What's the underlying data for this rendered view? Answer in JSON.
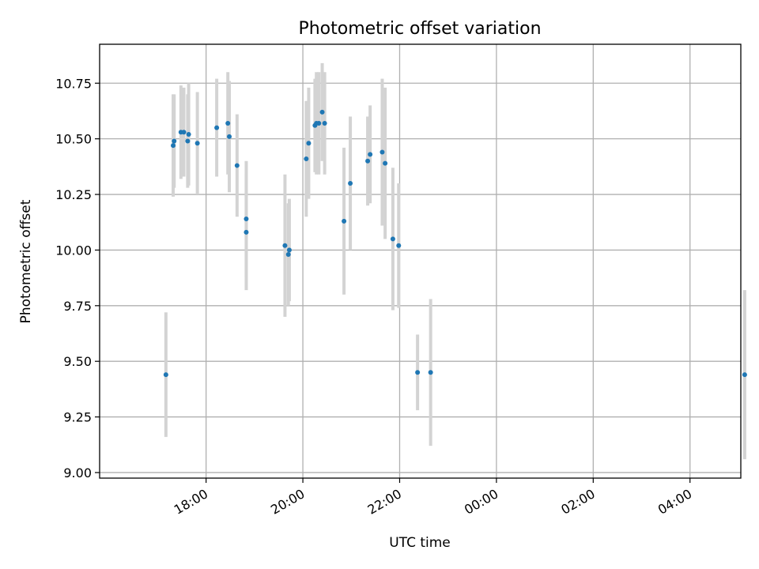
{
  "chart_data": {
    "type": "scatter",
    "title": "Photometric offset variation",
    "xlabel": "UTC time",
    "ylabel": "Photometric offset",
    "x_unit": "hours since 00:00 UTC of first day (values > 24 are next day)",
    "xlim": [
      15.8,
      29.05
    ],
    "ylim": [
      8.975,
      10.925
    ],
    "grid": true,
    "x_ticks": [
      {
        "value": 18,
        "label": "18:00"
      },
      {
        "value": 20,
        "label": "20:00"
      },
      {
        "value": 22,
        "label": "22:00"
      },
      {
        "value": 24,
        "label": "00:00"
      },
      {
        "value": 26,
        "label": "02:00"
      },
      {
        "value": 28,
        "label": "04:00"
      }
    ],
    "y_ticks": [
      {
        "value": 9.0,
        "label": "9.00"
      },
      {
        "value": 9.25,
        "label": "9.25"
      },
      {
        "value": 9.5,
        "label": "9.50"
      },
      {
        "value": 9.75,
        "label": "9.75"
      },
      {
        "value": 10.0,
        "label": "10.00"
      },
      {
        "value": 10.25,
        "label": "10.25"
      },
      {
        "value": 10.5,
        "label": "10.50"
      },
      {
        "value": 10.75,
        "label": "10.75"
      }
    ],
    "series": [
      {
        "marker_color": "#1f77b4",
        "errorbar_color": "#d3d3d3",
        "points": [
          {
            "x": 17.17,
            "y": 9.44,
            "err": 0.28
          },
          {
            "x": 17.32,
            "y": 10.47,
            "err": 0.23
          },
          {
            "x": 17.34,
            "y": 10.49,
            "err": 0.21
          },
          {
            "x": 17.48,
            "y": 10.53,
            "err": 0.21
          },
          {
            "x": 17.54,
            "y": 10.53,
            "err": 0.2
          },
          {
            "x": 17.62,
            "y": 10.49,
            "err": 0.21
          },
          {
            "x": 17.64,
            "y": 10.52,
            "err": 0.23
          },
          {
            "x": 17.82,
            "y": 10.48,
            "err": 0.23
          },
          {
            "x": 18.22,
            "y": 10.55,
            "err": 0.22
          },
          {
            "x": 18.45,
            "y": 10.57,
            "err": 0.23
          },
          {
            "x": 18.48,
            "y": 10.51,
            "err": 0.25
          },
          {
            "x": 18.64,
            "y": 10.38,
            "err": 0.23
          },
          {
            "x": 18.83,
            "y": 10.14,
            "err": 0.26
          },
          {
            "x": 18.83,
            "y": 10.08,
            "err": 0.26
          },
          {
            "x": 19.63,
            "y": 10.02,
            "err": 0.32
          },
          {
            "x": 19.7,
            "y": 9.98,
            "err": 0.23
          },
          {
            "x": 19.72,
            "y": 10.0,
            "err": 0.23
          },
          {
            "x": 20.07,
            "y": 10.41,
            "err": 0.26
          },
          {
            "x": 20.12,
            "y": 10.48,
            "err": 0.25
          },
          {
            "x": 20.25,
            "y": 10.56,
            "err": 0.21
          },
          {
            "x": 20.28,
            "y": 10.57,
            "err": 0.23
          },
          {
            "x": 20.33,
            "y": 10.57,
            "err": 0.23
          },
          {
            "x": 20.4,
            "y": 10.62,
            "err": 0.22
          },
          {
            "x": 20.45,
            "y": 10.57,
            "err": 0.23
          },
          {
            "x": 20.85,
            "y": 10.13,
            "err": 0.33
          },
          {
            "x": 20.98,
            "y": 10.3,
            "err": 0.3
          },
          {
            "x": 21.34,
            "y": 10.4,
            "err": 0.2
          },
          {
            "x": 21.39,
            "y": 10.43,
            "err": 0.22
          },
          {
            "x": 21.64,
            "y": 10.44,
            "err": 0.33
          },
          {
            "x": 21.7,
            "y": 10.39,
            "err": 0.34
          },
          {
            "x": 21.86,
            "y": 10.05,
            "err": 0.32
          },
          {
            "x": 21.98,
            "y": 10.02,
            "err": 0.28
          },
          {
            "x": 22.37,
            "y": 9.45,
            "err": 0.17
          },
          {
            "x": 22.64,
            "y": 9.45,
            "err": 0.33
          },
          {
            "x": 29.13,
            "y": 9.44,
            "err": 0.38
          }
        ]
      }
    ]
  }
}
